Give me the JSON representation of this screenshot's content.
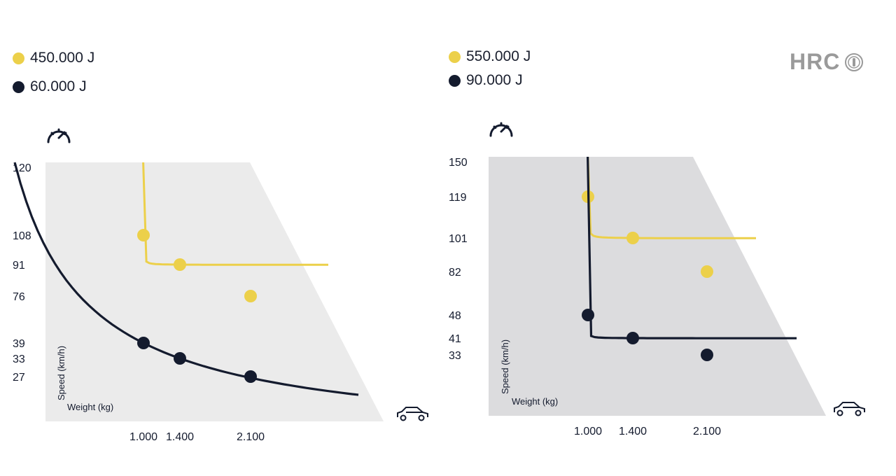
{
  "brand": {
    "name": "HRC",
    "color": "#9a9a9a"
  },
  "colors": {
    "yellow": "#ecd04a",
    "navy": "#141b2e",
    "panel_left": "#ebebeb",
    "panel_right": "#dcdcde"
  },
  "icons": {
    "speed": "speedometer-icon",
    "vehicle": "car-icon"
  },
  "chart_data": [
    {
      "type": "line",
      "legend": [
        {
          "label": "450.000 J",
          "color": "#ecd04a"
        },
        {
          "label": "60.000 J",
          "color": "#141b2e"
        }
      ],
      "xlabel": "Weight (kg)",
      "ylabel": "Speed (km/h)",
      "y_ticks": [
        {
          "value": 120,
          "label": "120"
        },
        {
          "value": 108,
          "label": "108"
        },
        {
          "value": 91,
          "label": "91"
        },
        {
          "value": 76,
          "label": "76"
        },
        {
          "value": 39,
          "label": "39"
        },
        {
          "value": 33,
          "label": "33"
        },
        {
          "value": 27,
          "label": "27"
        }
      ],
      "x_ticks": [
        {
          "value": 1000,
          "label": "1.000"
        },
        {
          "value": 1400,
          "label": "1.400"
        },
        {
          "value": 2100,
          "label": "2.100"
        }
      ],
      "series": [
        {
          "name": "450.000 J",
          "color": "#ecd04a",
          "points": [
            {
              "x": 1000,
              "y": 108
            },
            {
              "x": 1400,
              "y": 91
            },
            {
              "x": 2100,
              "y": 76
            }
          ]
        },
        {
          "name": "60.000 J",
          "color": "#141b2e",
          "points": [
            {
              "x": 1000,
              "y": 39
            },
            {
              "x": 1400,
              "y": 33
            },
            {
              "x": 2100,
              "y": 27
            }
          ]
        }
      ]
    },
    {
      "type": "line",
      "legend": [
        {
          "label": "550.000 J",
          "color": "#ecd04a"
        },
        {
          "label": "90.000 J",
          "color": "#141b2e"
        }
      ],
      "xlabel": "Weight (kg)",
      "ylabel": "Speed (km/h)",
      "y_ticks": [
        {
          "value": 150,
          "label": "150"
        },
        {
          "value": 119,
          "label": "119"
        },
        {
          "value": 101,
          "label": "101"
        },
        {
          "value": 82,
          "label": "82"
        },
        {
          "value": 48,
          "label": "48"
        },
        {
          "value": 41,
          "label": "41"
        },
        {
          "value": 33,
          "label": "33"
        }
      ],
      "x_ticks": [
        {
          "value": 1000,
          "label": "1.000"
        },
        {
          "value": 1400,
          "label": "1.400"
        },
        {
          "value": 2100,
          "label": "2.100"
        }
      ],
      "series": [
        {
          "name": "550.000 J",
          "color": "#ecd04a",
          "points": [
            {
              "x": 1000,
              "y": 119
            },
            {
              "x": 1400,
              "y": 101
            },
            {
              "x": 2100,
              "y": 82
            }
          ]
        },
        {
          "name": "90.000 J",
          "color": "#141b2e",
          "points": [
            {
              "x": 1000,
              "y": 48
            },
            {
              "x": 1400,
              "y": 41
            },
            {
              "x": 2100,
              "y": 33
            }
          ]
        }
      ]
    }
  ]
}
